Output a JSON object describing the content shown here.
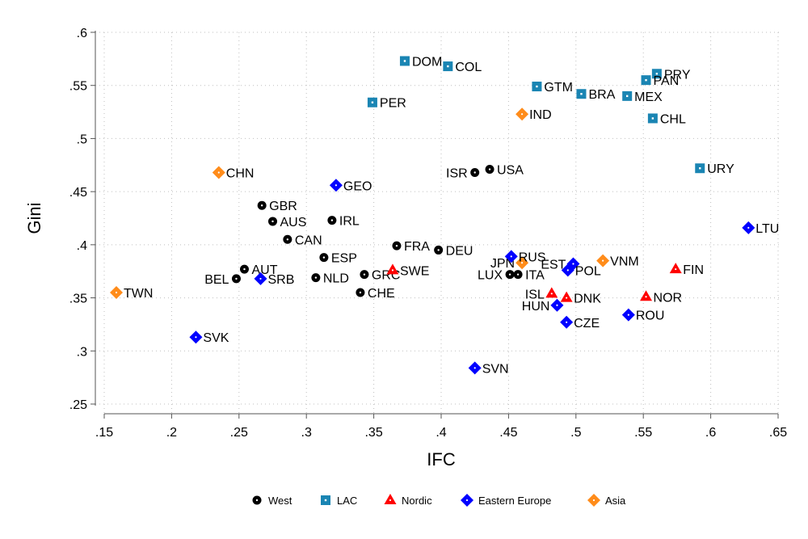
{
  "chart_data": {
    "type": "scatter",
    "xlabel": "IFC",
    "ylabel": "Gini",
    "xlim": [
      0.13,
      0.65
    ],
    "ylim": [
      0.245,
      0.6
    ],
    "xticks": [
      ".15",
      ".2",
      ".25",
      ".3",
      ".35",
      ".4",
      ".45",
      ".5",
      ".55",
      ".6",
      ".65"
    ],
    "yticks": [
      ".25",
      ".3",
      ".35",
      ".4",
      ".45",
      ".5",
      ".55",
      ".6"
    ],
    "grid": true,
    "legend_position": "bottom",
    "groups": [
      {
        "name": "West",
        "color": "#000000",
        "marker": "circle"
      },
      {
        "name": "LAC",
        "color": "#1a85b3",
        "marker": "square"
      },
      {
        "name": "Nordic",
        "color": "#ff0000",
        "marker": "triangle"
      },
      {
        "name": "Eastern Europe",
        "color": "#0000ff",
        "marker": "diamond"
      },
      {
        "name": "Asia",
        "color": "#ff8c1a",
        "marker": "diamond"
      }
    ],
    "points": [
      {
        "label": "DOM",
        "x": 0.373,
        "y": 0.573,
        "group": "LAC"
      },
      {
        "label": "COL",
        "x": 0.405,
        "y": 0.568,
        "group": "LAC"
      },
      {
        "label": "PER",
        "x": 0.349,
        "y": 0.534,
        "group": "LAC"
      },
      {
        "label": "GTM",
        "x": 0.471,
        "y": 0.549,
        "group": "LAC"
      },
      {
        "label": "BRA",
        "x": 0.504,
        "y": 0.542,
        "group": "LAC"
      },
      {
        "label": "MEX",
        "x": 0.538,
        "y": 0.54,
        "group": "LAC"
      },
      {
        "label": "PRY",
        "x": 0.56,
        "y": 0.561,
        "group": "LAC"
      },
      {
        "label": "PAN",
        "x": 0.552,
        "y": 0.555,
        "group": "LAC"
      },
      {
        "label": "CHL",
        "x": 0.557,
        "y": 0.519,
        "group": "LAC"
      },
      {
        "label": "URY",
        "x": 0.592,
        "y": 0.472,
        "group": "LAC"
      },
      {
        "label": "IND",
        "x": 0.46,
        "y": 0.523,
        "group": "Asia"
      },
      {
        "label": "CHN",
        "x": 0.235,
        "y": 0.468,
        "group": "Asia"
      },
      {
        "label": "TWN",
        "x": 0.159,
        "y": 0.355,
        "group": "Asia"
      },
      {
        "label": "JPN",
        "x": 0.46,
        "y": 0.383,
        "group": "Asia"
      },
      {
        "label": "VNM",
        "x": 0.52,
        "y": 0.385,
        "group": "Asia"
      },
      {
        "label": "ISR",
        "x": 0.425,
        "y": 0.468,
        "group": "West"
      },
      {
        "label": "USA",
        "x": 0.436,
        "y": 0.471,
        "group": "West"
      },
      {
        "label": "GBR",
        "x": 0.267,
        "y": 0.437,
        "group": "West"
      },
      {
        "label": "AUS",
        "x": 0.275,
        "y": 0.422,
        "group": "West"
      },
      {
        "label": "IRL",
        "x": 0.319,
        "y": 0.423,
        "group": "West"
      },
      {
        "label": "CAN",
        "x": 0.286,
        "y": 0.405,
        "group": "West"
      },
      {
        "label": "FRA",
        "x": 0.367,
        "y": 0.399,
        "group": "West"
      },
      {
        "label": "DEU",
        "x": 0.398,
        "y": 0.395,
        "group": "West"
      },
      {
        "label": "ESP",
        "x": 0.313,
        "y": 0.388,
        "group": "West"
      },
      {
        "label": "AUT",
        "x": 0.254,
        "y": 0.377,
        "group": "West"
      },
      {
        "label": "BEL",
        "x": 0.248,
        "y": 0.368,
        "group": "West"
      },
      {
        "label": "NLD",
        "x": 0.307,
        "y": 0.369,
        "group": "West"
      },
      {
        "label": "GRC",
        "x": 0.343,
        "y": 0.372,
        "group": "West"
      },
      {
        "label": "CHE",
        "x": 0.34,
        "y": 0.355,
        "group": "West"
      },
      {
        "label": "LUX",
        "x": 0.451,
        "y": 0.372,
        "group": "West"
      },
      {
        "label": "ITA",
        "x": 0.457,
        "y": 0.372,
        "group": "West"
      },
      {
        "label": "SWE",
        "x": 0.364,
        "y": 0.376,
        "group": "Nordic"
      },
      {
        "label": "FIN",
        "x": 0.574,
        "y": 0.377,
        "group": "Nordic"
      },
      {
        "label": "ISL",
        "x": 0.482,
        "y": 0.354,
        "group": "Nordic"
      },
      {
        "label": "DNK",
        "x": 0.493,
        "y": 0.35,
        "group": "Nordic"
      },
      {
        "label": "NOR",
        "x": 0.552,
        "y": 0.351,
        "group": "Nordic"
      },
      {
        "label": "GEO",
        "x": 0.322,
        "y": 0.456,
        "group": "Eastern Europe"
      },
      {
        "label": "LTU",
        "x": 0.628,
        "y": 0.416,
        "group": "Eastern Europe"
      },
      {
        "label": "RUS",
        "x": 0.452,
        "y": 0.389,
        "group": "Eastern Europe"
      },
      {
        "label": "EST",
        "x": 0.498,
        "y": 0.382,
        "group": "Eastern Europe"
      },
      {
        "label": "POL",
        "x": 0.494,
        "y": 0.376,
        "group": "Eastern Europe"
      },
      {
        "label": "SRB",
        "x": 0.266,
        "y": 0.368,
        "group": "Eastern Europe"
      },
      {
        "label": "HUN",
        "x": 0.486,
        "y": 0.343,
        "group": "Eastern Europe"
      },
      {
        "label": "ROU",
        "x": 0.539,
        "y": 0.334,
        "group": "Eastern Europe"
      },
      {
        "label": "CZE",
        "x": 0.493,
        "y": 0.327,
        "group": "Eastern Europe"
      },
      {
        "label": "SVK",
        "x": 0.218,
        "y": 0.313,
        "group": "Eastern Europe"
      },
      {
        "label": "SVN",
        "x": 0.425,
        "y": 0.284,
        "group": "Eastern Europe"
      }
    ]
  }
}
